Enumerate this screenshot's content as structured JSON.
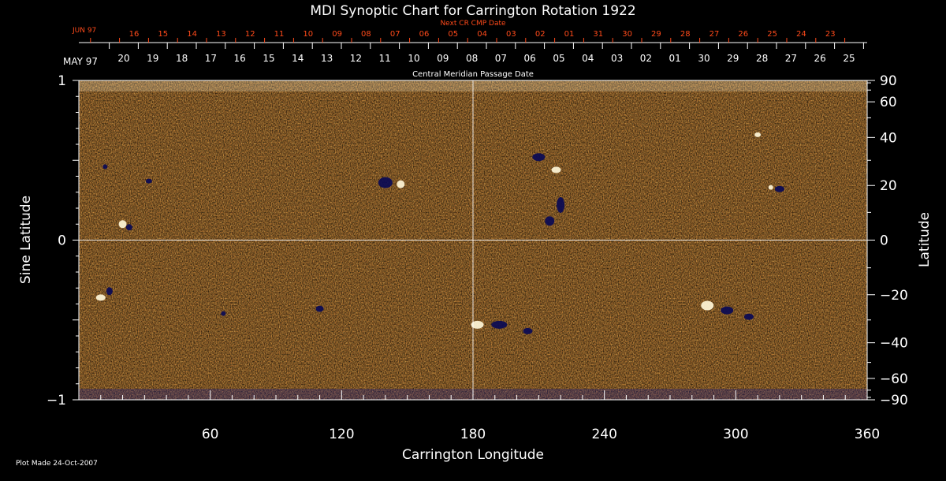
{
  "chart_data": {
    "type": "heatmap",
    "title": "MDI Synoptic Chart for Carrington Rotation 1922",
    "xlabel": "Carrington Longitude",
    "ylabel": "Sine Latitude",
    "y2label": "Latitude",
    "top_label_next": "Next CR CMP Date",
    "top_label_current": "Central Meridian Passage Date",
    "xlim": [
      0,
      360
    ],
    "ylim": [
      -1,
      1
    ],
    "x_ticks": [
      "60",
      "120",
      "180",
      "240",
      "300",
      "360"
    ],
    "x_tick_values": [
      60,
      120,
      180,
      240,
      300,
      360
    ],
    "y_ticks": [
      "1",
      "0",
      "−1"
    ],
    "y_tick_values": [
      1,
      0,
      -1
    ],
    "lat_ticks": [
      "90",
      "60",
      "40",
      "20",
      "0",
      "−20",
      "−40",
      "−60",
      "−90"
    ],
    "lat_tick_values": [
      90,
      60,
      40,
      20,
      0,
      -20,
      -40,
      -60,
      -90
    ],
    "next_month": "JUN 97",
    "next_dates": [
      "16",
      "15",
      "14",
      "13",
      "12",
      "11",
      "10",
      "09",
      "08",
      "07",
      "06",
      "05",
      "04",
      "03",
      "02",
      "01",
      "31",
      "30",
      "29",
      "28",
      "27",
      "26",
      "25",
      "24",
      "23"
    ],
    "current_month": "MAY 97",
    "current_dates": [
      "20",
      "19",
      "18",
      "17",
      "16",
      "15",
      "14",
      "13",
      "12",
      "11",
      "10",
      "09",
      "08",
      "07",
      "06",
      "05",
      "04",
      "03",
      "02",
      "01",
      "30",
      "29",
      "28",
      "27",
      "26",
      "25"
    ],
    "colors": {
      "background": "#000000",
      "field_low": "#0c0c6a",
      "field_mid": "#e8641a",
      "field_high": "#fff8e0",
      "next_axis": "#ff4a1a",
      "axis": "#ffffff"
    },
    "gridlines": [
      "longitude 180",
      "sine latitude 0"
    ]
  },
  "footer": {
    "plot_made": "Plot Made 24-Oct-2007"
  }
}
